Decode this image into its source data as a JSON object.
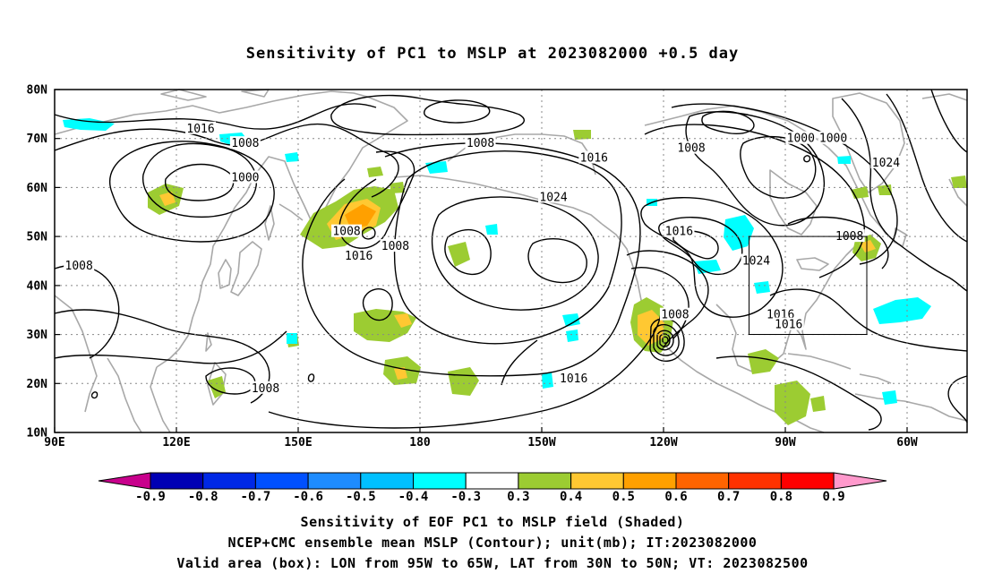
{
  "title": "Sensitivity of PC1 to MSLP at 2023082000 +0.5 day",
  "lat_labels": [
    "80N",
    "70N",
    "60N",
    "50N",
    "40N",
    "30N",
    "20N",
    "10N"
  ],
  "lon_labels": [
    "90E",
    "120E",
    "150E",
    "180",
    "150W",
    "120W",
    "90W",
    "60W"
  ],
  "colorbar": {
    "colors": [
      "#c8008c",
      "#0000b4",
      "#0028e6",
      "#0050ff",
      "#1e8cff",
      "#00c0ff",
      "#00ffff",
      "#ffffff",
      "#9ccc32",
      "#ffc832",
      "#ffa000",
      "#ff6400",
      "#ff3200",
      "#ff0000",
      "#ff99cc"
    ],
    "labels": [
      "-0.9",
      "-0.8",
      "-0.7",
      "-0.6",
      "-0.5",
      "-0.4",
      "-0.3",
      "0.3",
      "0.4",
      "0.5",
      "0.6",
      "0.7",
      "0.8",
      "0.9"
    ]
  },
  "isobar_labels": [
    {
      "text": "1016",
      "lon": 126,
      "lat": 72
    },
    {
      "text": "1008",
      "lon": 137,
      "lat": 69
    },
    {
      "text": "1000",
      "lon": 137,
      "lat": 62
    },
    {
      "text": "1008",
      "lon": 195,
      "lat": 69
    },
    {
      "text": "1008",
      "lon": 247,
      "lat": 68
    },
    {
      "text": "1000",
      "lon": 274,
      "lat": 70
    },
    {
      "text": "1000",
      "lon": 282,
      "lat": 70
    },
    {
      "text": "1024",
      "lon": 295,
      "lat": 65
    },
    {
      "text": "1016",
      "lon": 223,
      "lat": 66
    },
    {
      "text": "1024",
      "lon": 213,
      "lat": 58
    },
    {
      "text": "1008",
      "lon": 162,
      "lat": 51
    },
    {
      "text": "1008",
      "lon": 174,
      "lat": 48
    },
    {
      "text": "1016",
      "lon": 165,
      "lat": 46
    },
    {
      "text": "1016",
      "lon": 244,
      "lat": 51
    },
    {
      "text": "1008",
      "lon": 286,
      "lat": 50
    },
    {
      "text": "1024",
      "lon": 263,
      "lat": 45
    },
    {
      "text": "1008",
      "lon": 96,
      "lat": 44
    },
    {
      "text": "1008",
      "lon": 243,
      "lat": 34
    },
    {
      "text": "1016",
      "lon": 269,
      "lat": 34
    },
    {
      "text": "1016",
      "lon": 271,
      "lat": 32
    },
    {
      "text": "1016",
      "lon": 218,
      "lat": 21
    },
    {
      "text": "1008",
      "lon": 142,
      "lat": 19
    }
  ],
  "footer": {
    "line1": "Sensitivity of EOF PC1 to MSLP field (Shaded)",
    "line2": "NCEP+CMC ensemble mean MSLP (Contour); unit(mb); IT:2023082000",
    "line3": "Valid area (box): LON from 95W to 65W, LAT from 30N to 50N; VT: 2023082500"
  }
}
